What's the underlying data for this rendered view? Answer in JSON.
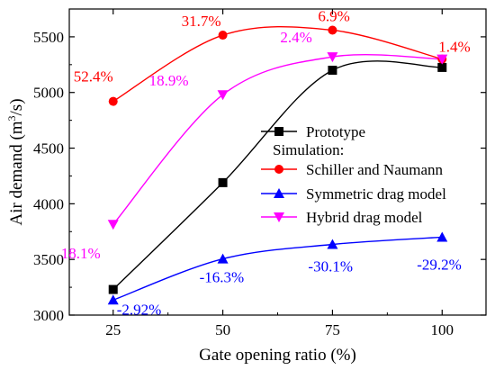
{
  "chart_data": {
    "type": "line",
    "xlabel": "Gate opening ratio (%)",
    "ylabel_main": "Air demand (m",
    "ylabel_sup": "3",
    "ylabel_tail": "/s)",
    "x": [
      25,
      50,
      75,
      100
    ],
    "xlim": [
      15,
      110
    ],
    "ylim": [
      3000,
      5750
    ],
    "x_ticks": [
      "25",
      "50",
      "75",
      "100"
    ],
    "y_ticks": [
      {
        "value": 3000,
        "label": "3000"
      },
      {
        "value": 3500,
        "label": "3500"
      },
      {
        "value": 4000,
        "label": "4000"
      },
      {
        "value": 4500,
        "label": "4500"
      },
      {
        "value": 5000,
        "label": "5000"
      },
      {
        "value": 5500,
        "label": "5500"
      }
    ],
    "legend_heading": "Simulation:",
    "series": [
      {
        "name": "Prototype",
        "color": "#000000",
        "marker": "square",
        "values": [
          3230,
          4190,
          5200,
          5225
        ]
      },
      {
        "name": "Schiller and Naumann",
        "color": "#ff0000",
        "marker": "circle",
        "values": [
          4920,
          5515,
          5560,
          5300
        ],
        "labels": [
          "52.4%",
          "31.7%",
          "6.9%",
          "1.4%"
        ]
      },
      {
        "name": "Symmetric drag model",
        "color": "#0000ff",
        "marker": "triangle-up",
        "values": [
          3135,
          3505,
          3635,
          3700
        ],
        "labels": [
          "-2.92%",
          "-16.3%",
          "-30.1%",
          "-29.2%"
        ]
      },
      {
        "name": "Hybrid drag model",
        "color": "#ff00ff",
        "marker": "triangle-down",
        "values": [
          3815,
          4980,
          5320,
          5300
        ],
        "labels": [
          "18.1%",
          "18.9%",
          "2.4%",
          ""
        ]
      }
    ]
  }
}
